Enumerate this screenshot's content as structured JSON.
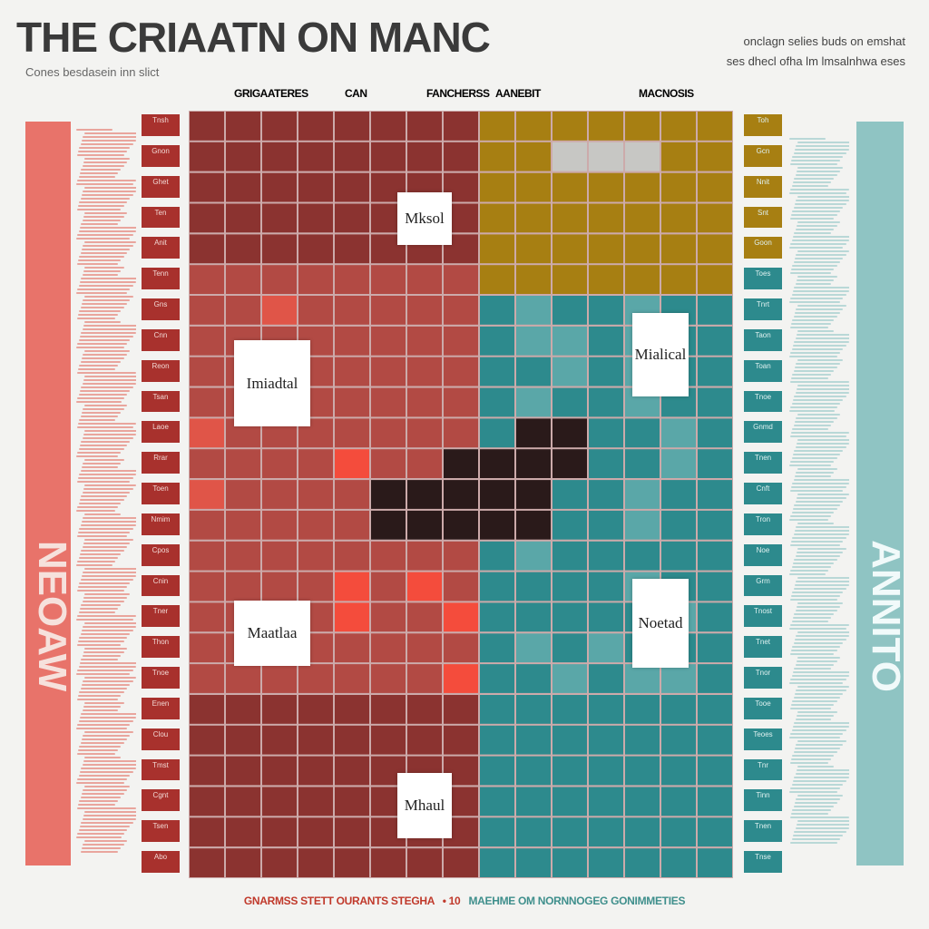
{
  "chart_data": {
    "type": "heatmap",
    "title": "THE CRIAATN ON MANC",
    "subtitle": "Cones besdasein inn slict",
    "notes": [
      "onclagn selies buds on emshat",
      "ses dhecl ofha lm lmsalnhwa eses"
    ],
    "column_headers": [
      {
        "label": "GRIGAATERES",
        "color": "#b53a3a"
      },
      {
        "label": "CAN",
        "color": "#c0392b"
      },
      {
        "label": "FANCHERSS",
        "color": "#e0564a"
      },
      {
        "label": "AANEBIT",
        "color": "#5aa7a4"
      },
      {
        "label": "MACNOSIS",
        "color": "#3f8f8c"
      }
    ],
    "left_axis_label": "NEOAW",
    "right_axis_label": "ANNITO",
    "callouts": [
      {
        "label": "Mksol"
      },
      {
        "label": "Mialical"
      },
      {
        "label": "Imiadtal"
      },
      {
        "label": "Maatlaa"
      },
      {
        "label": "Noetad"
      },
      {
        "label": "Mhaul"
      }
    ],
    "footer": {
      "left": "GNARMSS STETT OURANTS STEGHA",
      "marker": "• 10",
      "right": "MAEHME OM NORNNOGEG GONIMMETIES"
    },
    "palette": {
      "dark_red": "#8b3330",
      "mid_red": "#b24a44",
      "bright_red": "#e05548",
      "hot_red": "#f44c3c",
      "olive": "#a77f12",
      "gray": "#c7c7c4",
      "teal_dark": "#2d8a8d",
      "teal_mid": "#5aa7a8",
      "teal_light": "#8fc0bf",
      "black": "#2a1a1a",
      "left_bar": "#e8736a",
      "right_bar": "#8fc4c3"
    },
    "rows": 25,
    "cols": 15,
    "cell_codes": [
      "DDDDDDDDOOOOOOO",
      "DDDDDDDDOOGGGOO",
      "DDDDDDDDOOOOOOO",
      "DDDDDDDDOOOOOOO",
      "DDDDDDDDOOOOOOO",
      "MMMMMMMMOOOOOOO",
      "MMRMMMMMTLTTLTT",
      "MMMMMMMMTLLTLTT",
      "MMMMMMMMTTLTLTT",
      "MMMMMMMMTLTTLTT",
      "RMMMMMMMTKKTTLT",
      "MMMMHMMKKKKTTLT",
      "RMMMMKKKKKTTLTT",
      "MMMMMKKKKKTTLTT",
      "MMMMMMMMTLTTTTT",
      "MMMMHMHMTTTTLTT",
      "MMMMHMMHTTTTTLT",
      "MMMMMMMMTLTLTTT",
      "MMMMMMMHTTLTLLT",
      "DDDDDDDDTTTTTTT",
      "DDDDDDDDTTTTTTT",
      "DDDDDDDDTTTTTTT",
      "DDDDDDDDTTTTTTT",
      "DDDDDDDDTTTTTTT",
      "DDDDDDDDTTTTTTT"
    ],
    "row_labels_left": [
      "Tnsh",
      "Gnon",
      "Ghet",
      "Ten",
      "Anit",
      "Tenn",
      "Gns",
      "Cnn",
      "Reon",
      "Tsan",
      "Laoe",
      "Rrar",
      "Toen",
      "Nmim",
      "Cpos",
      "Cnin",
      "Tner",
      "Thon",
      "Tnoe",
      "Enen",
      "Clou",
      "Tmst",
      "Cgnt",
      "Tsen",
      "Abo"
    ],
    "row_labels_right": [
      "Toh",
      "Gcn",
      "Nnit",
      "Snt",
      "Goon",
      "Toes",
      "Tnrt",
      "Taon",
      "Toan",
      "Tnoe",
      "Gnmd",
      "Tnen",
      "Cnft",
      "Tron",
      "Noe",
      "Grm",
      "Tnost",
      "Tnet",
      "Tnor",
      "Tooe",
      "Teoes",
      "Tnr",
      "Tinn",
      "Tnen",
      "Tnse"
    ]
  }
}
